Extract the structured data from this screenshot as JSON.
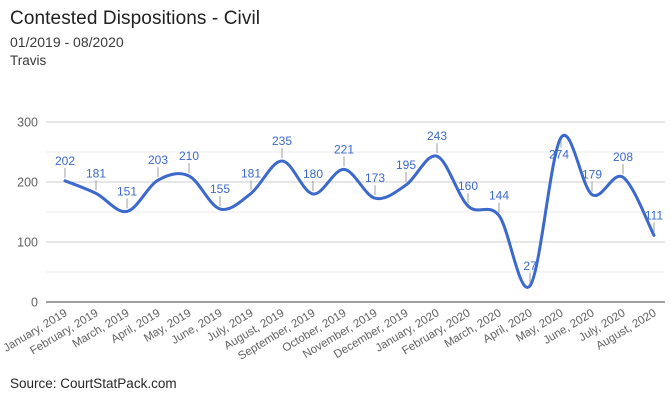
{
  "header": {
    "title": "Contested Dispositions - Civil",
    "date_range": "01/2019 - 08/2020",
    "region": "Travis"
  },
  "footer": {
    "source": "Source: CourtStatPack.com"
  },
  "chart_data": {
    "type": "line",
    "title": "Contested Dispositions - Civil",
    "subtitle": "01/2019 - 08/2020",
    "region": "Travis",
    "source": "Source: CourtStatPack.com",
    "curve": "smooth",
    "legend": "none",
    "grid": true,
    "categories": [
      "January, 2019",
      "February, 2019",
      "March, 2019",
      "April, 2019",
      "May, 2019",
      "June, 2019",
      "July, 2019",
      "August, 2019",
      "September, 2019",
      "October, 2019",
      "November, 2019",
      "December, 2019",
      "January, 2020",
      "February, 2020",
      "March, 2020",
      "April, 2020",
      "May, 2020",
      "June, 2020",
      "July, 2020",
      "August, 2020"
    ],
    "values": [
      202,
      181,
      151,
      203,
      210,
      155,
      181,
      235,
      180,
      221,
      173,
      195,
      243,
      160,
      144,
      27,
      274,
      179,
      208,
      111
    ],
    "ylim": [
      0,
      300
    ],
    "y_ticks": [
      0,
      100,
      200,
      300
    ],
    "y_minor_gridlines": [
      50,
      150,
      250
    ],
    "x_label_rotation_deg": -31,
    "annotations_visible": true,
    "colors": {
      "line": "#3c69cc",
      "annotation": "#3c69cc",
      "stem": "#9e9e9e",
      "major_gridline": "#cccccc",
      "minor_gridline": "#ebebeb",
      "baseline": "#424242",
      "axis_text": "#616161",
      "title_text": "#212121"
    }
  }
}
